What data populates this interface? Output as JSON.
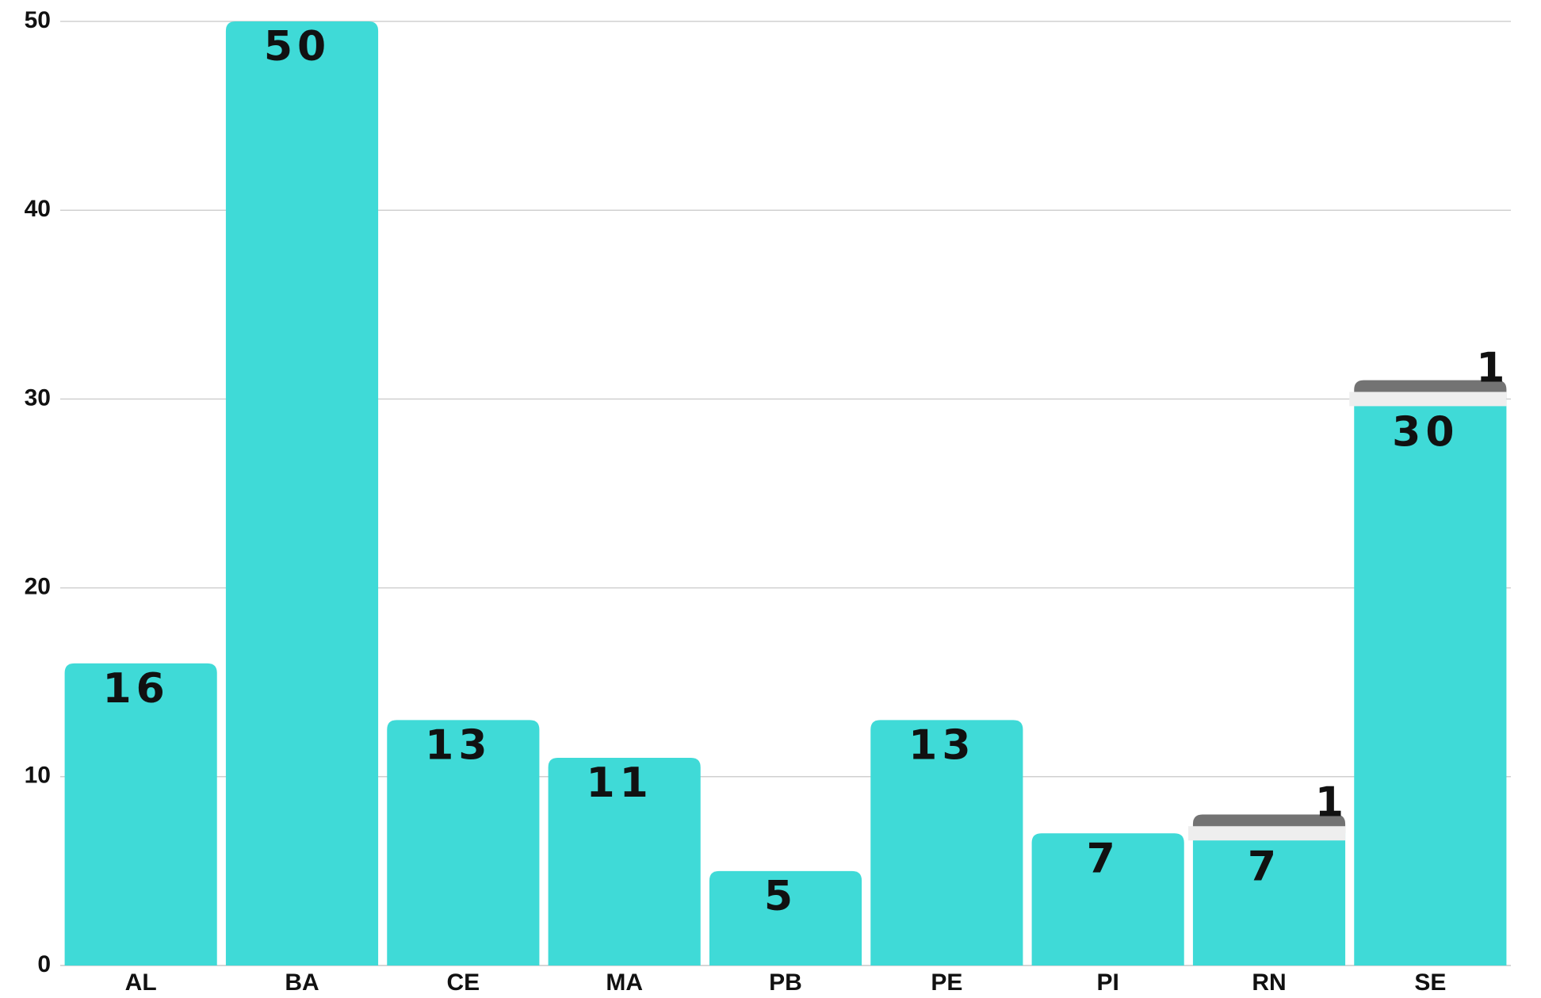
{
  "chart_data": {
    "type": "bar",
    "stacked": true,
    "categories": [
      "AL",
      "BA",
      "CE",
      "MA",
      "PB",
      "PE",
      "PI",
      "RN",
      "SE"
    ],
    "series": [
      {
        "color": "#3fdad7",
        "values": [
          16,
          50,
          13,
          11,
          5,
          13,
          7,
          7,
          30
        ]
      },
      {
        "color": "#737373",
        "values": [
          null,
          null,
          null,
          null,
          null,
          null,
          null,
          1,
          1
        ]
      }
    ],
    "ylim": [
      0,
      50
    ],
    "yticks": [
      0,
      10,
      20,
      30,
      40,
      50
    ],
    "grid": true
  }
}
